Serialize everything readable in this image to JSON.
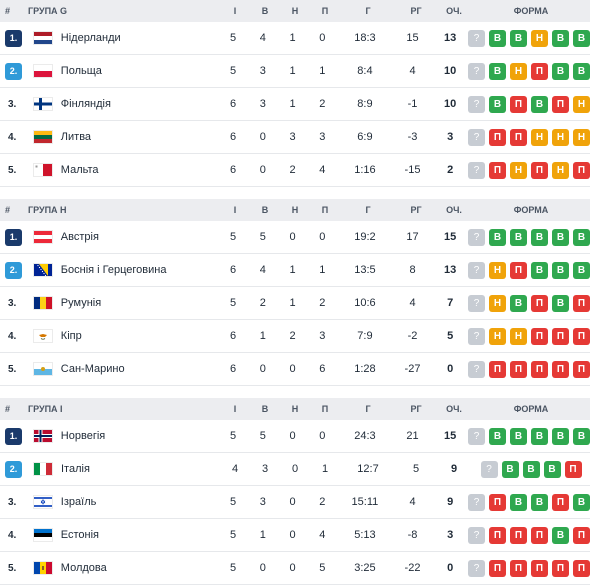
{
  "colors": {
    "rank_top": "#1a3a6b",
    "rank_second": "#2f9ad8",
    "win": "#2fa84f",
    "draw": "#f0a30a",
    "loss": "#e53935",
    "pending": "#c7ccd3"
  },
  "headers": {
    "rank": "#",
    "p": "І",
    "w": "В",
    "d": "Н",
    "l": "П",
    "goals": "Г",
    "gd": "РГ",
    "pts": "ОЧ.",
    "form": "ФОРМА"
  },
  "groups": [
    {
      "name": "ГРУПА G",
      "rows": [
        {
          "rank": "1.",
          "rank_style": "top",
          "flag": "netherlands",
          "team": "Нідерланди",
          "p": "5",
          "w": "4",
          "d": "1",
          "l": "0",
          "goals": "18:3",
          "gd": "15",
          "pts": "13",
          "form": [
            "?",
            "В",
            "В",
            "Н",
            "В",
            "В"
          ],
          "form_res": [
            "q",
            "W",
            "W",
            "D",
            "W",
            "W"
          ]
        },
        {
          "rank": "2.",
          "rank_style": "second",
          "flag": "poland",
          "team": "Польща",
          "p": "5",
          "w": "3",
          "d": "1",
          "l": "1",
          "goals": "8:4",
          "gd": "4",
          "pts": "10",
          "form": [
            "?",
            "В",
            "Н",
            "П",
            "В",
            "В"
          ],
          "form_res": [
            "q",
            "W",
            "D",
            "L",
            "W",
            "W"
          ]
        },
        {
          "rank": "3.",
          "rank_style": "plain",
          "flag": "finland",
          "team": "Фінляндія",
          "p": "6",
          "w": "3",
          "d": "1",
          "l": "2",
          "goals": "8:9",
          "gd": "-1",
          "pts": "10",
          "form": [
            "?",
            "В",
            "П",
            "В",
            "П",
            "Н"
          ],
          "form_res": [
            "q",
            "W",
            "L",
            "W",
            "L",
            "D"
          ]
        },
        {
          "rank": "4.",
          "rank_style": "plain",
          "flag": "lithuania",
          "team": "Литва",
          "p": "6",
          "w": "0",
          "d": "3",
          "l": "3",
          "goals": "6:9",
          "gd": "-3",
          "pts": "3",
          "form": [
            "?",
            "П",
            "П",
            "Н",
            "Н",
            "Н"
          ],
          "form_res": [
            "q",
            "L",
            "L",
            "D",
            "D",
            "D"
          ]
        },
        {
          "rank": "5.",
          "rank_style": "plain",
          "flag": "malta",
          "team": "Мальта",
          "p": "6",
          "w": "0",
          "d": "2",
          "l": "4",
          "goals": "1:16",
          "gd": "-15",
          "pts": "2",
          "form": [
            "?",
            "П",
            "Н",
            "П",
            "Н",
            "П"
          ],
          "form_res": [
            "q",
            "L",
            "D",
            "L",
            "D",
            "L"
          ]
        }
      ]
    },
    {
      "name": "ГРУПА H",
      "rows": [
        {
          "rank": "1.",
          "rank_style": "top",
          "flag": "austria",
          "team": "Австрія",
          "p": "5",
          "w": "5",
          "d": "0",
          "l": "0",
          "goals": "19:2",
          "gd": "17",
          "pts": "15",
          "form": [
            "?",
            "В",
            "В",
            "В",
            "В",
            "В"
          ],
          "form_res": [
            "q",
            "W",
            "W",
            "W",
            "W",
            "W"
          ]
        },
        {
          "rank": "2.",
          "rank_style": "second",
          "flag": "bosnia",
          "team": "Боснія і Герцеговина",
          "p": "6",
          "w": "4",
          "d": "1",
          "l": "1",
          "goals": "13:5",
          "gd": "8",
          "pts": "13",
          "form": [
            "?",
            "Н",
            "П",
            "В",
            "В",
            "В"
          ],
          "form_res": [
            "q",
            "D",
            "L",
            "W",
            "W",
            "W"
          ]
        },
        {
          "rank": "3.",
          "rank_style": "plain",
          "flag": "romania",
          "team": "Румунія",
          "p": "5",
          "w": "2",
          "d": "1",
          "l": "2",
          "goals": "10:6",
          "gd": "4",
          "pts": "7",
          "form": [
            "?",
            "Н",
            "В",
            "П",
            "В",
            "П"
          ],
          "form_res": [
            "q",
            "D",
            "W",
            "L",
            "W",
            "L"
          ]
        },
        {
          "rank": "4.",
          "rank_style": "plain",
          "flag": "cyprus",
          "team": "Кіпр",
          "p": "6",
          "w": "1",
          "d": "2",
          "l": "3",
          "goals": "7:9",
          "gd": "-2",
          "pts": "5",
          "form": [
            "?",
            "Н",
            "Н",
            "П",
            "П",
            "П"
          ],
          "form_res": [
            "q",
            "D",
            "D",
            "L",
            "L",
            "L"
          ]
        },
        {
          "rank": "5.",
          "rank_style": "plain",
          "flag": "sanmarino",
          "team": "Сан-Марино",
          "p": "6",
          "w": "0",
          "d": "0",
          "l": "6",
          "goals": "1:28",
          "gd": "-27",
          "pts": "0",
          "form": [
            "?",
            "П",
            "П",
            "П",
            "П",
            "П"
          ],
          "form_res": [
            "q",
            "L",
            "L",
            "L",
            "L",
            "L"
          ]
        }
      ]
    },
    {
      "name": "ГРУПА I",
      "rows": [
        {
          "rank": "1.",
          "rank_style": "top",
          "flag": "norway",
          "team": "Норвегія",
          "p": "5",
          "w": "5",
          "d": "0",
          "l": "0",
          "goals": "24:3",
          "gd": "21",
          "pts": "15",
          "form": [
            "?",
            "В",
            "В",
            "В",
            "В",
            "В"
          ],
          "form_res": [
            "q",
            "W",
            "W",
            "W",
            "W",
            "W"
          ]
        },
        {
          "rank": "2.",
          "rank_style": "second",
          "flag": "italy",
          "team": "Італія",
          "p": "4",
          "w": "3",
          "d": "0",
          "l": "1",
          "goals": "12:7",
          "gd": "5",
          "pts": "9",
          "form": [
            "?",
            "В",
            "В",
            "В",
            "П"
          ],
          "form_res": [
            "q",
            "W",
            "W",
            "W",
            "L"
          ]
        },
        {
          "rank": "3.",
          "rank_style": "plain",
          "flag": "israel",
          "team": "Ізраїль",
          "p": "5",
          "w": "3",
          "d": "0",
          "l": "2",
          "goals": "15:11",
          "gd": "4",
          "pts": "9",
          "form": [
            "?",
            "П",
            "В",
            "В",
            "П",
            "В"
          ],
          "form_res": [
            "q",
            "L",
            "W",
            "W",
            "L",
            "W"
          ]
        },
        {
          "rank": "4.",
          "rank_style": "plain",
          "flag": "estonia",
          "team": "Естонія",
          "p": "5",
          "w": "1",
          "d": "0",
          "l": "4",
          "goals": "5:13",
          "gd": "-8",
          "pts": "3",
          "form": [
            "?",
            "П",
            "П",
            "П",
            "В",
            "П"
          ],
          "form_res": [
            "q",
            "L",
            "L",
            "L",
            "W",
            "L"
          ]
        },
        {
          "rank": "5.",
          "rank_style": "plain",
          "flag": "moldova",
          "team": "Молдова",
          "p": "5",
          "w": "0",
          "d": "0",
          "l": "5",
          "goals": "3:25",
          "gd": "-22",
          "pts": "0",
          "form": [
            "?",
            "П",
            "П",
            "П",
            "П",
            "П"
          ],
          "form_res": [
            "q",
            "L",
            "L",
            "L",
            "L",
            "L"
          ]
        }
      ]
    }
  ]
}
